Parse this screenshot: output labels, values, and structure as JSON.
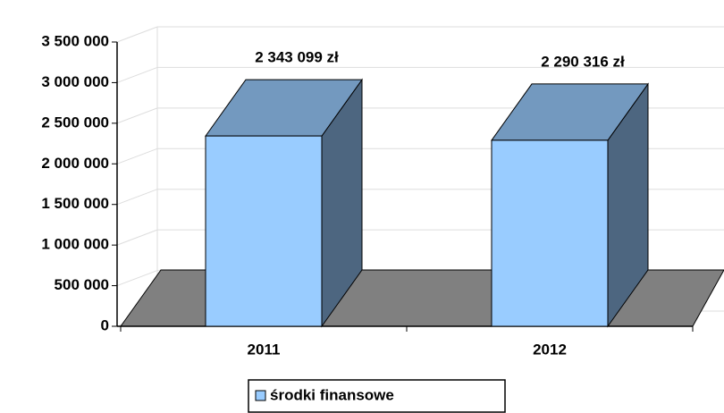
{
  "chart_data": {
    "type": "bar3d",
    "categories": [
      "2011",
      "2012"
    ],
    "series": [
      {
        "name": "środki finansowe",
        "color": "#99ccff",
        "values": [
          2343099,
          2290316
        ],
        "value_labels": [
          "2 343 099 zł",
          "2 290 316 zł"
        ]
      }
    ],
    "ylim": [
      0,
      3500000
    ],
    "yticks": [
      0,
      {
        "value": 500000,
        "label": "500 000"
      },
      {
        "value": 1000000,
        "label": "1 000 000"
      },
      {
        "value": 1500000,
        "label": "1 500 000"
      },
      {
        "value": 2000000,
        "label": "2 000 000"
      },
      {
        "value": 2500000,
        "label": "2 500 000"
      },
      {
        "value": 3000000,
        "label": "3 000 000"
      },
      {
        "value": 3500000,
        "label": "3 500 000"
      }
    ],
    "grid": true,
    "legend": "bottom"
  }
}
